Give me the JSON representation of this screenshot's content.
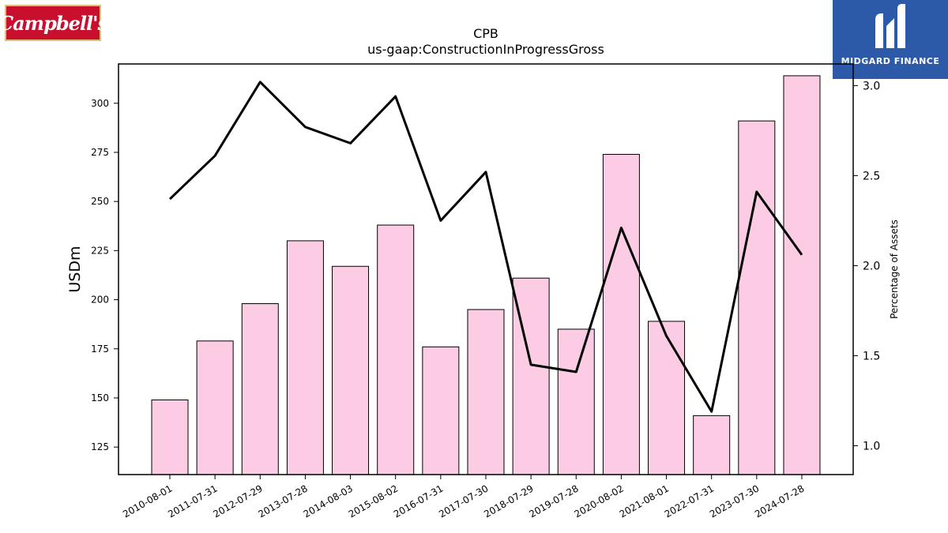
{
  "logos": {
    "left_text": "Campbell's",
    "right_text": "MIDGARD FINANCE"
  },
  "colors": {
    "bar_fill": "#fccce5",
    "bar_edge": "#000000",
    "line": "#000000",
    "brand_red": "#c8102e",
    "brand_blue": "#2d5aa8"
  },
  "chart_data": {
    "type": "bar",
    "title": "CPB",
    "subtitle": "us-gaap:ConstructionInProgressGross",
    "ylabel": "USDm",
    "y2label": "Percentage of Assets",
    "categories": [
      "2010-08-01",
      "2011-07-31",
      "2012-07-29",
      "2013-07-28",
      "2014-08-03",
      "2015-08-02",
      "2016-07-31",
      "2017-07-30",
      "2018-07-29",
      "2019-07-28",
      "2020-08-02",
      "2021-08-01",
      "2022-07-31",
      "2023-07-30",
      "2024-07-28"
    ],
    "series": [
      {
        "type": "bar",
        "axis": "left",
        "values": [
          149,
          179,
          198,
          230,
          217,
          238,
          176,
          195,
          211,
          185,
          274,
          189,
          141,
          291,
          314
        ]
      },
      {
        "type": "line",
        "axis": "right",
        "values": [
          2.37,
          2.61,
          3.02,
          2.77,
          2.68,
          2.94,
          2.25,
          2.52,
          1.45,
          1.41,
          2.21,
          1.61,
          1.19,
          2.41,
          2.06
        ]
      }
    ],
    "ylim": [
      111,
      320
    ],
    "y2lim": [
      0.84,
      3.12
    ],
    "yticks": [
      125,
      150,
      175,
      200,
      225,
      250,
      275,
      300
    ],
    "y2ticks": [
      1.0,
      1.5,
      2.0,
      2.5,
      3.0
    ],
    "y2ticklabels": [
      "1.0",
      "1.5",
      "2.0",
      "2.5",
      "3.0"
    ],
    "grid": false
  }
}
